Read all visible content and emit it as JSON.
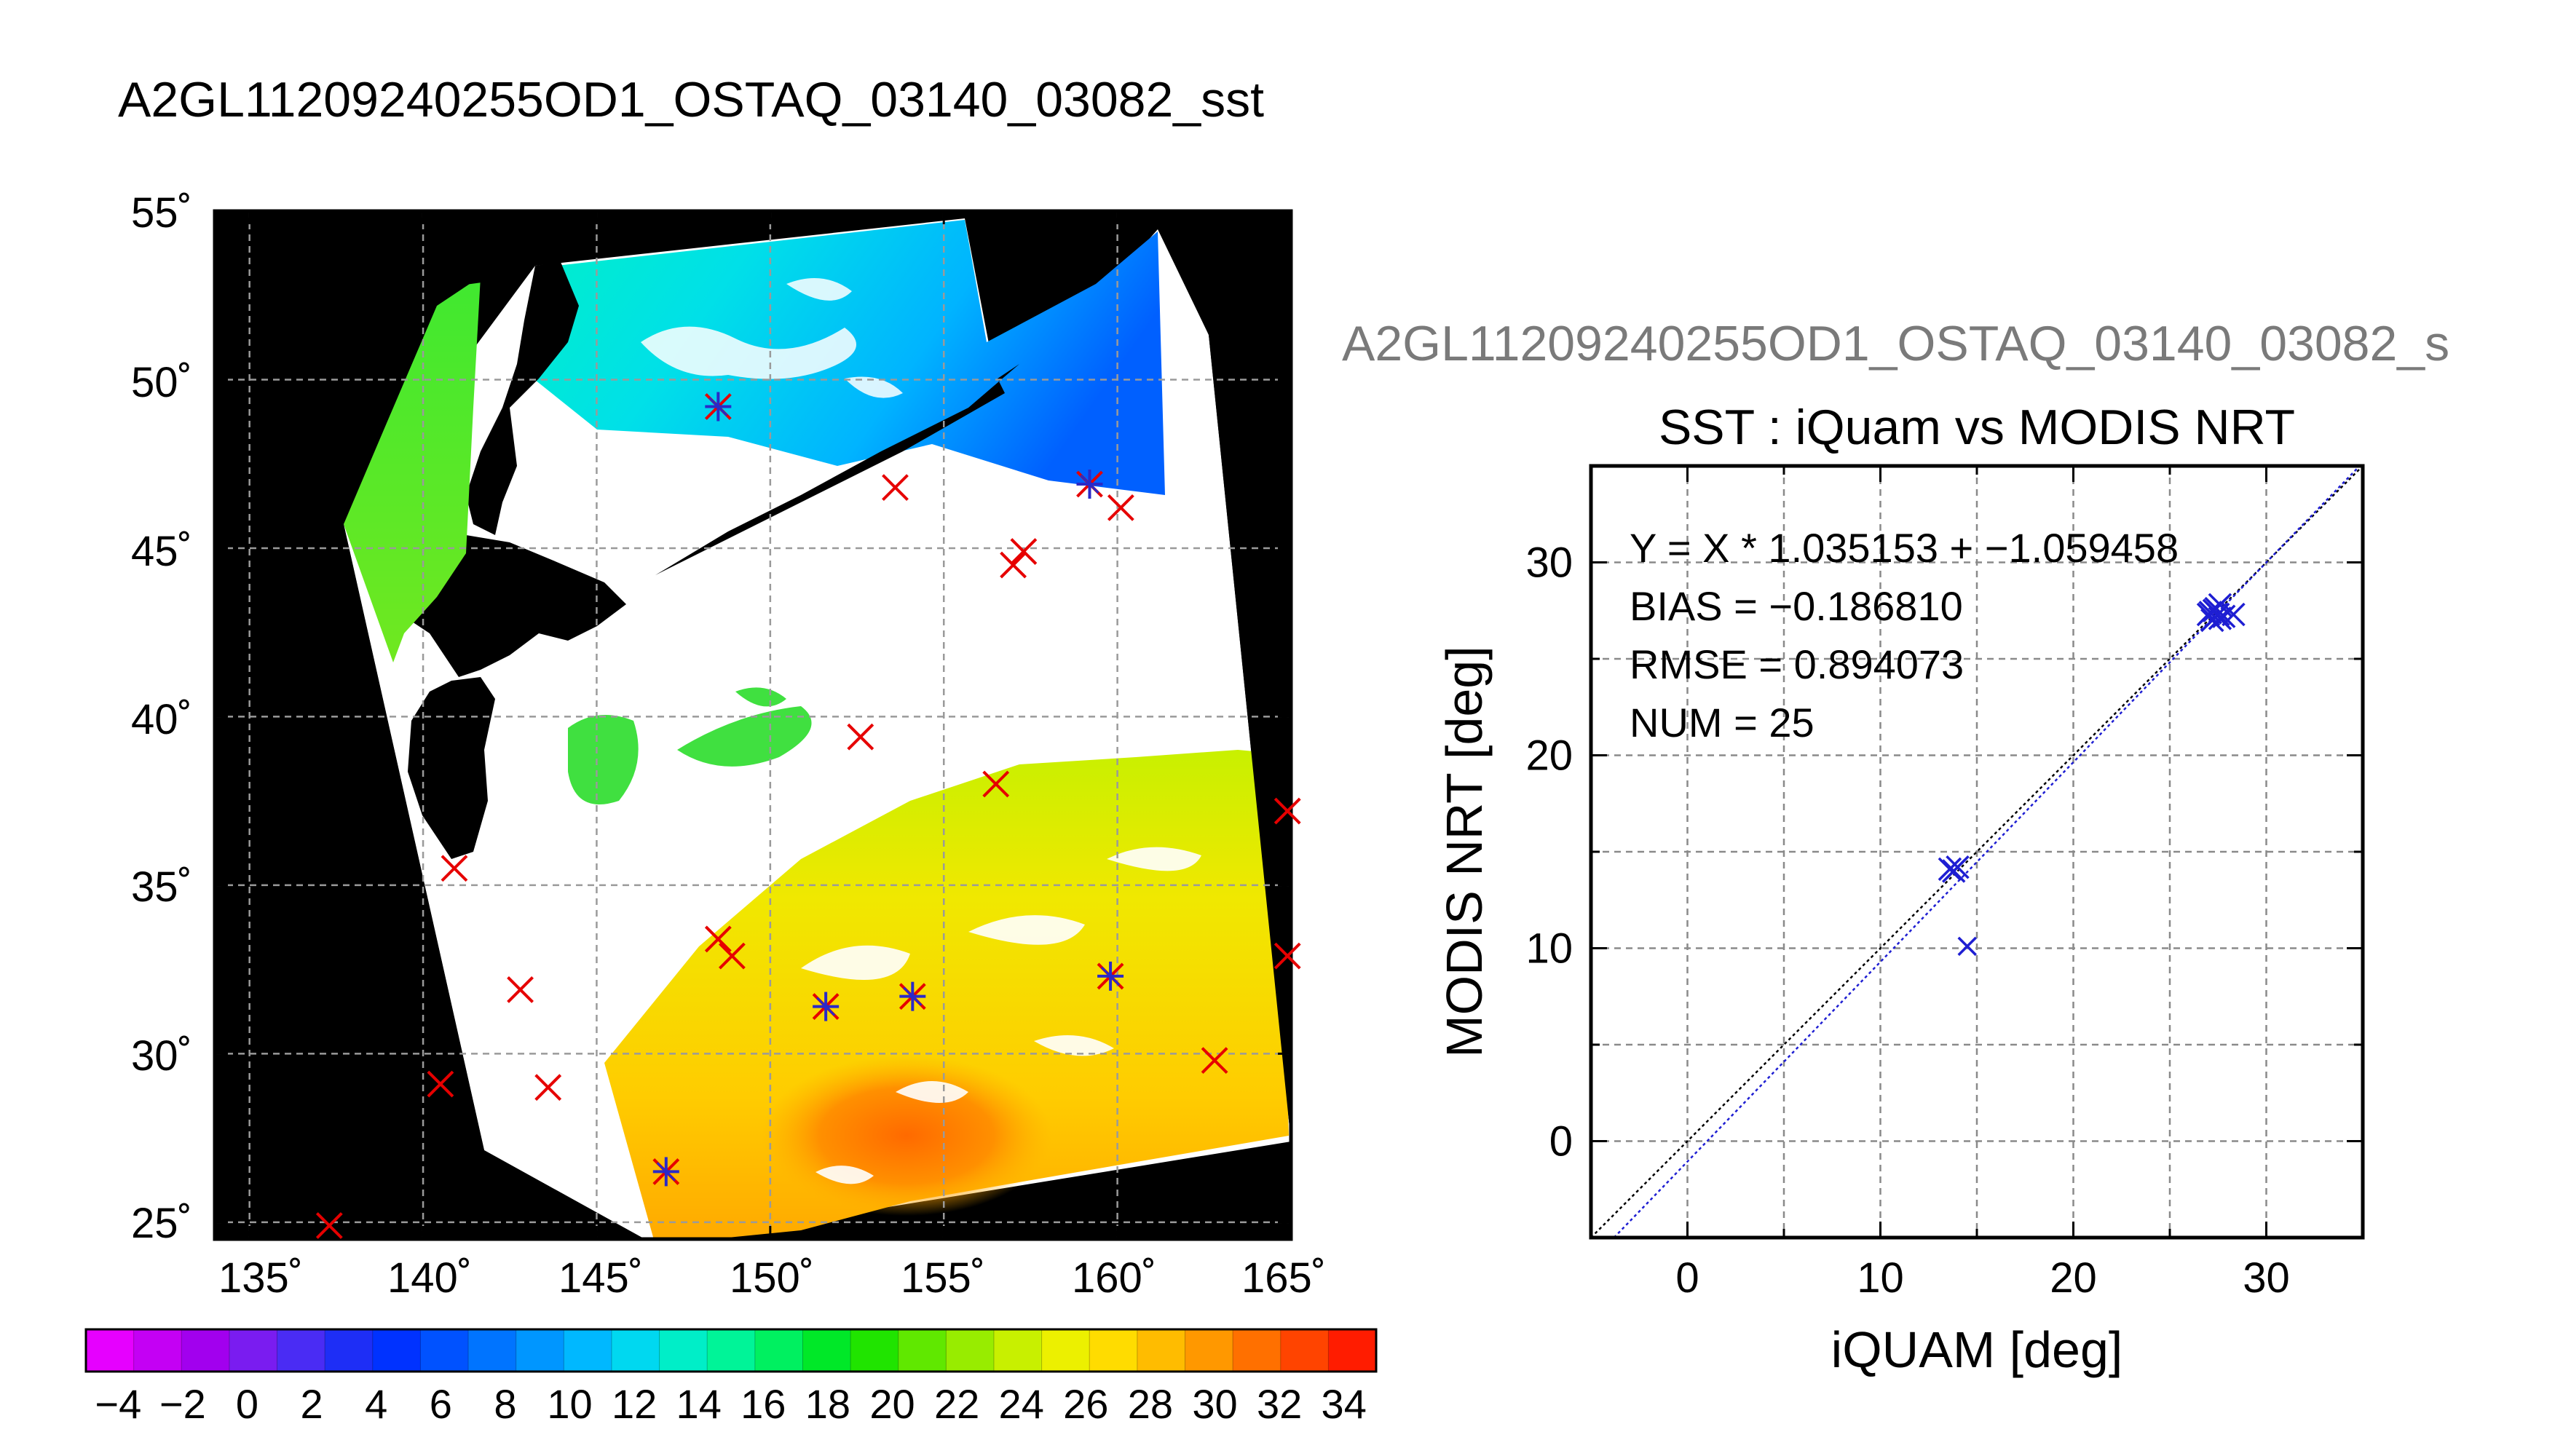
{
  "main_title": "A2GL11209240255OD1_OSTAQ_03140_03082_sst",
  "scatter_header": "A2GL11209240255OD1_OSTAQ_03140_03082_s",
  "map": {
    "lat_labels": [
      "55˚",
      "50˚",
      "45˚",
      "40˚",
      "35˚",
      "30˚",
      "25˚"
    ],
    "lon_labels": [
      "135˚",
      "140˚",
      "145˚",
      "150˚",
      "155˚",
      "160˚",
      "165˚"
    ],
    "lon_range": [
      134,
      165
    ],
    "lat_range": [
      24.5,
      55
    ],
    "grid": true
  },
  "colorbar": {
    "labels": [
      "−4",
      "−2",
      "0",
      "2",
      "4",
      "6",
      "8",
      "10",
      "12",
      "14",
      "16",
      "18",
      "20",
      "22",
      "24",
      "26",
      "28",
      "30",
      "32",
      "34"
    ],
    "range": [
      -5,
      35
    ],
    "colors": [
      "#e600ff",
      "#c400f4",
      "#a200ee",
      "#7a1cf0",
      "#4a2cf4",
      "#1e2ef6",
      "#0032ff",
      "#0052ff",
      "#0074ff",
      "#0096ff",
      "#00b8ff",
      "#00d8f0",
      "#00eec8",
      "#00f498",
      "#00f060",
      "#00e828",
      "#20e400",
      "#60e800",
      "#98ec00",
      "#c8f000",
      "#ecf000",
      "#ffdc00",
      "#ffbc00",
      "#ff9800",
      "#ff7000",
      "#ff4400",
      "#ff1c00"
    ]
  },
  "colors": {
    "match_marker": "#e60000",
    "modis_marker": "#2a2ac8",
    "fit_line": "#1e1ed2",
    "identity_line": "#000000",
    "header_gray": "#7a7a7a"
  },
  "chart_data": [
    {
      "type": "scatter",
      "panel": "map",
      "title": "A2GL11209240255OD1_OSTAQ_03140_03082_sst",
      "xlim": [
        134,
        165
      ],
      "ylim": [
        24.5,
        55
      ],
      "x_ticks": [
        "135˚",
        "140˚",
        "145˚",
        "150˚",
        "155˚",
        "160˚",
        "165˚"
      ],
      "y_ticks": [
        "25˚",
        "30˚",
        "35˚",
        "40˚",
        "45˚",
        "50˚",
        "55˚"
      ],
      "series": [
        {
          "marker": "x-red",
          "points": [
            [
              137.3,
              24.9
            ],
            [
              140.5,
              29.1
            ],
            [
              140.9,
              35.5
            ],
            [
              142.8,
              31.9
            ],
            [
              143.6,
              29.0
            ],
            [
              148.5,
              33.4
            ],
            [
              148.9,
              32.9
            ],
            [
              152.6,
              39.4
            ],
            [
              153.6,
              46.8
            ],
            [
              156.5,
              38.0
            ],
            [
              157.0,
              44.5
            ],
            [
              157.3,
              44.9
            ],
            [
              160.1,
              46.2
            ],
            [
              162.8,
              29.8
            ],
            [
              164.9,
              37.2
            ],
            [
              164.9,
              32.9
            ]
          ]
        },
        {
          "marker": "star-blue-red",
          "points": [
            [
              148.5,
              49.2
            ],
            [
              159.2,
              46.9
            ],
            [
              147.0,
              26.5
            ],
            [
              151.6,
              31.4
            ],
            [
              154.1,
              31.7
            ],
            [
              159.8,
              32.3
            ]
          ]
        }
      ],
      "colorbar": {
        "min": -5,
        "max": 35
      }
    },
    {
      "type": "scatter",
      "panel": "comparison",
      "title": "SST : iQuam vs MODIS NRT",
      "xlabel": "iQUAM [deg]",
      "ylabel": "MODIS NRT [deg]",
      "xlim": [
        -5,
        35
      ],
      "ylim": [
        -5,
        35
      ],
      "x_ticks": [
        "0",
        "10",
        "20",
        "30"
      ],
      "y_ticks": [
        "0",
        "10",
        "20",
        "30"
      ],
      "grid": true,
      "annotations": [
        "Y = X * 1.035153 + −1.059458",
        "BIAS = −0.186810",
        "RMSE = 0.894073",
        "NUM = 25"
      ],
      "points": [
        [
          14.5,
          10.1
        ],
        [
          13.8,
          14.0
        ],
        [
          14.0,
          14.2
        ],
        [
          13.6,
          14.1
        ],
        [
          27.0,
          27.3
        ],
        [
          27.2,
          27.0
        ],
        [
          27.4,
          27.6
        ],
        [
          27.5,
          27.3
        ],
        [
          27.6,
          27.8
        ],
        [
          27.3,
          27.5
        ],
        [
          27.8,
          27.2
        ],
        [
          28.3,
          27.3
        ],
        [
          27.1,
          27.4
        ],
        [
          27.6,
          27.1
        ]
      ],
      "fit": {
        "slope": 1.035153,
        "intercept": -1.059458
      }
    }
  ]
}
